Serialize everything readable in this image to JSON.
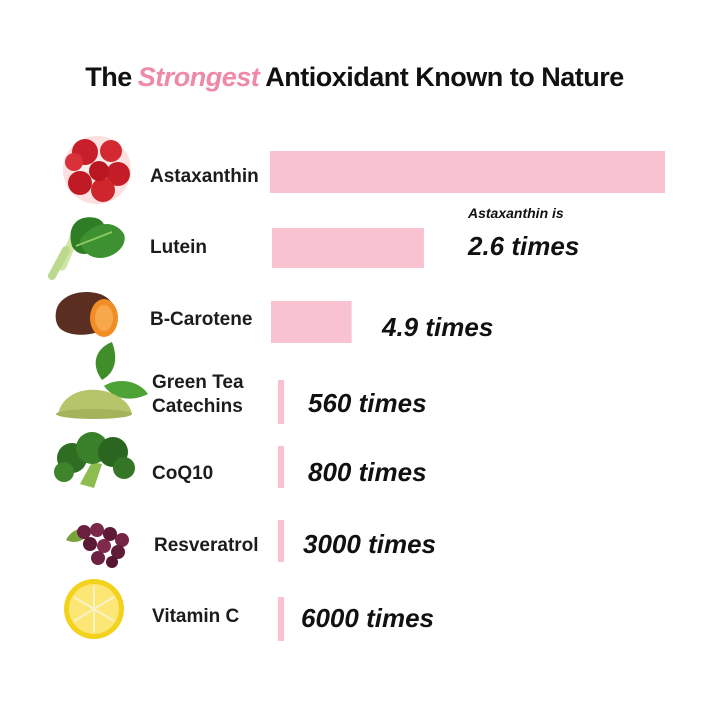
{
  "chart_data": {
    "type": "bar",
    "orientation": "horizontal",
    "title_parts": [
      "The",
      "Strongest",
      "Antioxidant Known to Nature"
    ],
    "categories": [
      "Astaxanthin",
      "Lutein",
      "B-Carotene",
      "Green Tea Catechins",
      "CoQ10",
      "Resveratrol",
      "Vitamin C"
    ],
    "icons": [
      "red-blood-cells-icon",
      "spinach-icon",
      "sweet-potato-icon",
      "green-tea-leaf-icon",
      "broccoli-icon",
      "grapes-icon",
      "lemon-icon"
    ],
    "relative_strength": [
      1,
      0.3846,
      0.2041,
      0.001786,
      0.00125,
      0.000333,
      0.000167
    ],
    "value_labels": [
      "",
      "2.6 times",
      "4.9 times",
      "560 times",
      "800 times",
      "3000 times",
      "6000 times"
    ],
    "annotation": "Astaxanthin is",
    "colors": {
      "bar": "#f8c2d0",
      "accent": "#ee8aa5",
      "text": "#111111"
    }
  }
}
